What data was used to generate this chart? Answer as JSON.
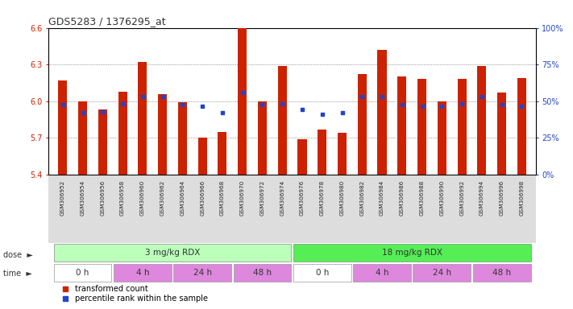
{
  "title": "GDS5283 / 1376295_at",
  "samples": [
    "GSM306952",
    "GSM306954",
    "GSM306956",
    "GSM306958",
    "GSM306960",
    "GSM306962",
    "GSM306964",
    "GSM306966",
    "GSM306968",
    "GSM306970",
    "GSM306972",
    "GSM306974",
    "GSM306976",
    "GSM306978",
    "GSM306980",
    "GSM306982",
    "GSM306984",
    "GSM306986",
    "GSM306988",
    "GSM306990",
    "GSM306992",
    "GSM306994",
    "GSM306996",
    "GSM306998"
  ],
  "bar_values": [
    6.17,
    6.0,
    5.93,
    6.08,
    6.32,
    6.06,
    5.99,
    5.7,
    5.75,
    6.6,
    6.0,
    6.29,
    5.69,
    5.77,
    5.74,
    6.22,
    6.42,
    6.2,
    6.18,
    6.0,
    6.18,
    6.29,
    6.07,
    6.19
  ],
  "blue_dot_values": [
    5.97,
    5.91,
    5.915,
    5.98,
    6.04,
    6.04,
    5.975,
    5.96,
    5.905,
    6.07,
    5.97,
    5.98,
    5.93,
    5.895,
    5.91,
    6.04,
    6.04,
    5.975,
    5.96,
    5.96,
    5.98,
    6.04,
    5.975,
    5.96
  ],
  "ylim": [
    5.4,
    6.6
  ],
  "yticks": [
    5.4,
    5.7,
    6.0,
    6.3,
    6.6
  ],
  "right_yticks": [
    0,
    25,
    50,
    75,
    100
  ],
  "bar_color": "#cc2200",
  "dot_color": "#2244cc",
  "dose_labels": [
    "3 mg/kg RDX",
    "18 mg/kg RDX"
  ],
  "dose_colors": [
    "#bbffbb",
    "#55ee55"
  ],
  "time_labels": [
    "0 h",
    "4 h",
    "24 h",
    "48 h",
    "0 h",
    "4 h",
    "24 h",
    "48 h"
  ],
  "time_colors_bg": [
    "#ffffff",
    "#dd88dd",
    "#dd88dd",
    "#dd88dd",
    "#ffffff",
    "#dd88dd",
    "#dd88dd",
    "#dd88dd"
  ],
  "legend_items": [
    "transformed count",
    "percentile rank within the sample"
  ],
  "background_color": "#ffffff",
  "grid_color": "#555555",
  "axis_label_color": "#cc2200",
  "right_axis_color": "#2244cc",
  "xtick_bg": "#dddddd"
}
